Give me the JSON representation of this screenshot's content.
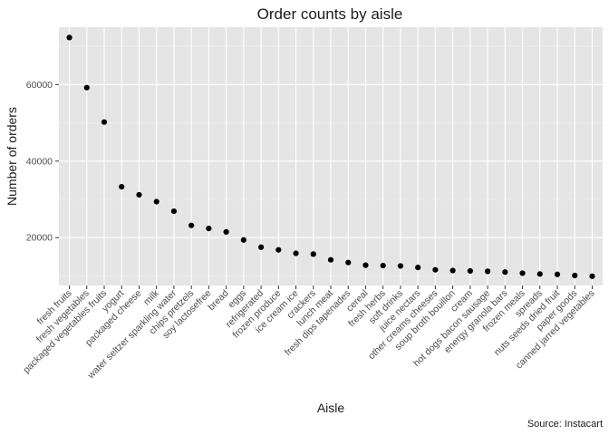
{
  "chart_data": {
    "type": "scatter",
    "title": "Order counts by aisle",
    "xlabel": "Aisle",
    "ylabel": "Number of orders",
    "caption": "Source: Instacart",
    "y_ticks": [
      20000,
      40000,
      60000
    ],
    "y_tick_labels": [
      "20000",
      "40000",
      "60000"
    ],
    "ylim": [
      7500,
      75000
    ],
    "grid": true,
    "panel_background": "#e5e5e5",
    "point_color": "#000000",
    "categories": [
      "fresh fruits",
      "fresh vegetables",
      "packaged vegetables fruits",
      "yogurt",
      "packaged cheese",
      "milk",
      "water seltzer sparkling water",
      "chips pretzels",
      "soy lactosefree",
      "bread",
      "eggs",
      "refrigerated",
      "frozen produce",
      "ice cream ice",
      "crackers",
      "lunch meat",
      "fresh dips tapenades",
      "cereal",
      "fresh herbs",
      "soft drinks",
      "juice nectars",
      "other creams cheeses",
      "soup broth bouillon",
      "cream",
      "hot dogs bacon sausage",
      "energy granola bars",
      "frozen meals",
      "spreads",
      "nuts seeds dried fruit",
      "paper goods",
      "canned jarred vegetables"
    ],
    "values": [
      72300,
      59200,
      50200,
      33300,
      31200,
      29400,
      26900,
      23200,
      22400,
      21500,
      19400,
      17500,
      16800,
      15900,
      15700,
      14200,
      13500,
      12800,
      12700,
      12600,
      12200,
      11600,
      11400,
      11300,
      11200,
      11000,
      10700,
      10500,
      10400,
      10100,
      9900
    ]
  }
}
